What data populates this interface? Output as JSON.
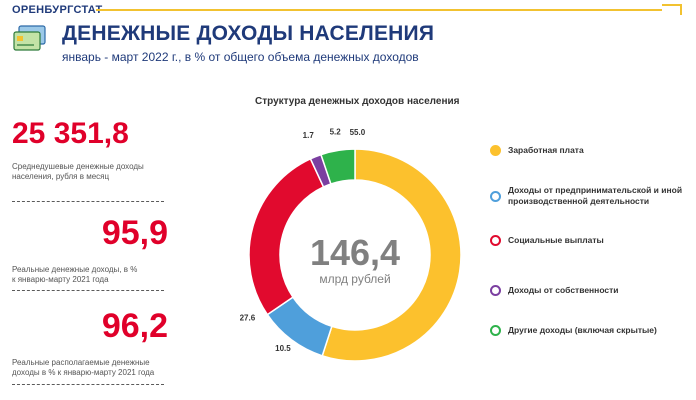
{
  "header": {
    "org": "ОРЕНБУРГСТАТ",
    "title": "ДЕНЕЖНЫЕ ДОХОДЫ НАСЕЛЕНИЯ",
    "subtitle": "январь - март 2022 г., в % от общего объема денежных доходов",
    "icon": "money-card-icon"
  },
  "stats": [
    {
      "value": "25 351,8",
      "label": "Среднедушевые денежные доходы населения, рубля в месяц"
    },
    {
      "value": "95,9",
      "label": "Реальные денежные доходы, в % к январю-марту 2021 года"
    },
    {
      "value": "96,2",
      "label": "Реальные располагаемые денежные доходы в % к январю-марту 2021 года"
    }
  ],
  "chart_data": {
    "type": "pie",
    "title": "Структура денежных доходов населения",
    "center_value": "146,4",
    "center_unit": "млрд  рублей",
    "categories": [
      "Заработная плата",
      "Доходы от предпринимательской и иной производственной деятельности",
      "Социальные выплаты",
      "Доходы от собственности",
      "Другие доходы (включая скрытые)"
    ],
    "values": [
      55.0,
      10.5,
      27.6,
      1.7,
      5.2
    ],
    "value_labels": [
      "55.0",
      "10.5",
      "27.6",
      "1.7",
      "5.2"
    ],
    "colors": [
      "#fcc12d",
      "#4f9fdb",
      "#e10a2e",
      "#7b3fa0",
      "#2eb24b"
    ],
    "legend_position": "right"
  },
  "colors": {
    "brand": "#1f3a7a",
    "accent": "#f2c230",
    "stat": "#e0002a"
  }
}
